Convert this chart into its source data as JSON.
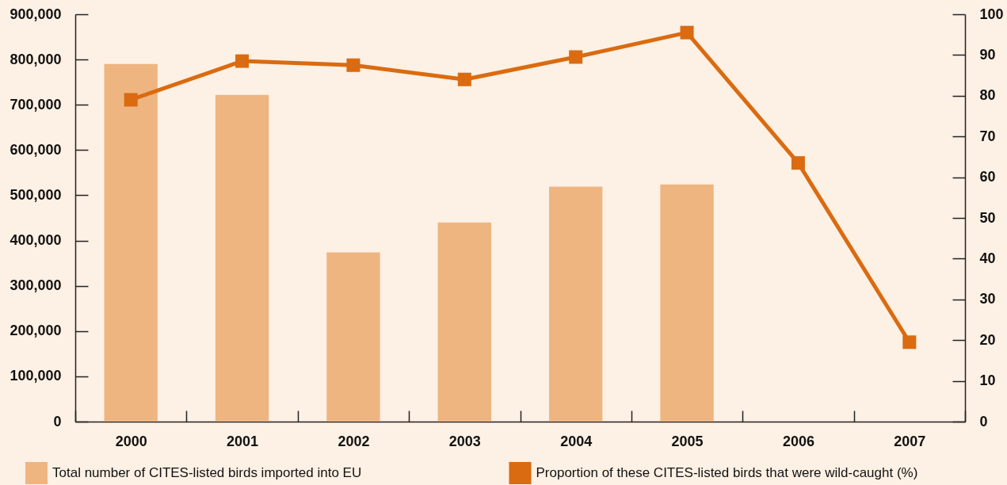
{
  "chart_data": {
    "type": "bar",
    "categories": [
      "2000",
      "2001",
      "2002",
      "2003",
      "2004",
      "2005",
      "2006",
      "2007"
    ],
    "series": [
      {
        "name": "Total number of CITES-listed birds imported into EU",
        "color": "#eeb581",
        "values": [
          790000,
          722000,
          374000,
          440000,
          519000,
          524000,
          null,
          null
        ]
      },
      {
        "name": "Proportion of these CITES-listed birds that were wild-caught (%)",
        "type": "line",
        "axis": "y2",
        "color": "#da6b10",
        "values": [
          79,
          88.5,
          87.5,
          84,
          89.5,
          95.5,
          63.5,
          19.5
        ]
      }
    ],
    "ylim": [
      0,
      900000
    ],
    "yticks": [
      0,
      {
        "value": 100000,
        "label": "100,000"
      },
      {
        "value": 200000,
        "label": "200,000"
      },
      {
        "value": 300000,
        "label": "300,000"
      },
      {
        "value": 400000,
        "label": "400,000"
      },
      {
        "value": 500000,
        "label": "500,000"
      },
      {
        "value": 600000,
        "label": "600,000"
      },
      {
        "value": 700000,
        "label": "700,000"
      },
      {
        "value": 800000,
        "label": "800,000"
      },
      {
        "value": 900000,
        "label": "900,000"
      }
    ],
    "y2lim": [
      0,
      100
    ],
    "y2ticks": [
      0,
      10,
      20,
      30,
      40,
      50,
      60,
      70,
      80,
      90,
      100
    ],
    "legend": "bottom",
    "marker": "square"
  }
}
